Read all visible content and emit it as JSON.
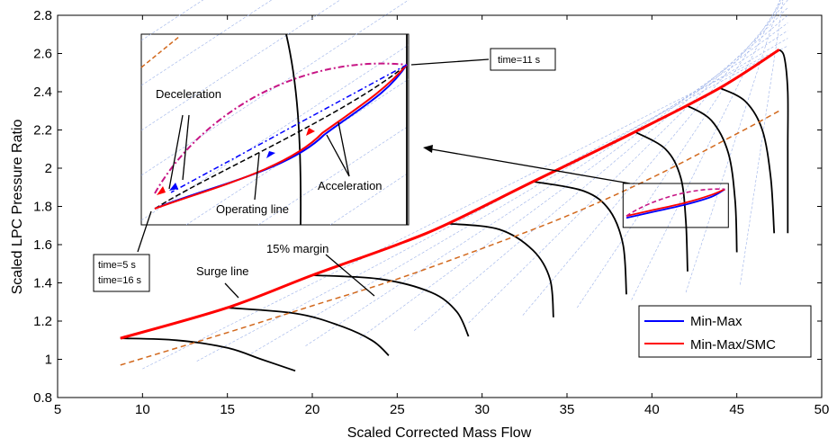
{
  "chart_data": {
    "type": "line",
    "xlabel": "Scaled Corrected Mass Flow",
    "ylabel": "Scaled LPC Pressure Ratio",
    "xlim": [
      5,
      50
    ],
    "ylim": [
      0.8,
      2.8
    ],
    "xticks": [
      "5",
      "10",
      "15",
      "20",
      "25",
      "30",
      "35",
      "40",
      "45",
      "50"
    ],
    "yticks": [
      "0.8",
      "1",
      "1.2",
      "1.4",
      "1.6",
      "1.8",
      "2",
      "2.2",
      "2.4",
      "2.6",
      "2.8"
    ],
    "grid": false,
    "legend_position": "bottom-right",
    "series": [
      {
        "name": "Min-Max",
        "color": "#0000ff",
        "x": [
          38.5,
          40.0,
          42.0,
          43.5,
          44.3
        ],
        "y": [
          1.74,
          1.77,
          1.81,
          1.85,
          1.89
        ]
      },
      {
        "name": "Min-Max/SMC",
        "color": "#ff0000",
        "x": [
          38.5,
          40.0,
          42.0,
          43.5,
          44.3
        ],
        "y": [
          1.75,
          1.78,
          1.82,
          1.86,
          1.89
        ]
      }
    ],
    "surge_line": {
      "color": "#ff0000",
      "x": [
        8.7,
        15,
        20,
        25,
        28,
        33,
        39,
        44,
        47.5
      ],
      "y": [
        1.11,
        1.27,
        1.44,
        1.6,
        1.71,
        1.93,
        2.19,
        2.42,
        2.62
      ]
    },
    "margin_line": {
      "color": "#d2691e",
      "x": [
        8.7,
        15,
        20,
        25,
        30,
        35,
        40,
        45,
        47.5
      ],
      "y": [
        0.97,
        1.14,
        1.28,
        1.42,
        1.58,
        1.75,
        1.95,
        2.18,
        2.3
      ]
    },
    "speed_lines": [
      {
        "x": [
          8.7,
          12,
          15,
          17,
          19
        ],
        "y": [
          1.11,
          1.1,
          1.06,
          1.0,
          0.94
        ]
      },
      {
        "x": [
          15,
          19,
          21.5,
          23.5,
          24.5
        ],
        "y": [
          1.27,
          1.24,
          1.18,
          1.1,
          1.02
        ]
      },
      {
        "x": [
          20,
          24,
          27,
          28.5,
          29.2
        ],
        "y": [
          1.44,
          1.42,
          1.35,
          1.25,
          1.12
        ]
      },
      {
        "x": [
          28,
          31,
          33,
          34,
          34.2
        ],
        "y": [
          1.71,
          1.68,
          1.57,
          1.42,
          1.22
        ]
      },
      {
        "x": [
          33,
          36,
          37.5,
          38.3,
          38.5
        ],
        "y": [
          1.93,
          1.88,
          1.78,
          1.6,
          1.34
        ]
      },
      {
        "x": [
          39,
          40.8,
          41.7,
          42.0,
          42.1
        ],
        "y": [
          2.19,
          2.1,
          1.95,
          1.72,
          1.46
        ]
      },
      {
        "x": [
          42,
          43.5,
          44.5,
          44.9,
          45.0
        ],
        "y": [
          2.33,
          2.25,
          2.08,
          1.83,
          1.56
        ]
      },
      {
        "x": [
          44,
          45.5,
          46.5,
          47.0,
          47.2
        ],
        "y": [
          2.42,
          2.35,
          2.2,
          1.95,
          1.66
        ]
      },
      {
        "x": [
          47.5,
          47.8,
          48.0,
          48.0,
          48.0
        ],
        "y": [
          2.62,
          2.58,
          2.4,
          2.1,
          1.66
        ]
      }
    ],
    "zoom_box": {
      "x": [
        38.3,
        44.5
      ],
      "y": [
        1.69,
        1.92
      ]
    },
    "annotations": {
      "time_11": "time=11 s",
      "time_5": "time=5 s",
      "time_16": "time=16 s",
      "deceleration": "Deceleration",
      "acceleration": "Acceleration",
      "operating_line": "Operating line",
      "margin": "15% margin",
      "surge": "Surge line"
    }
  }
}
